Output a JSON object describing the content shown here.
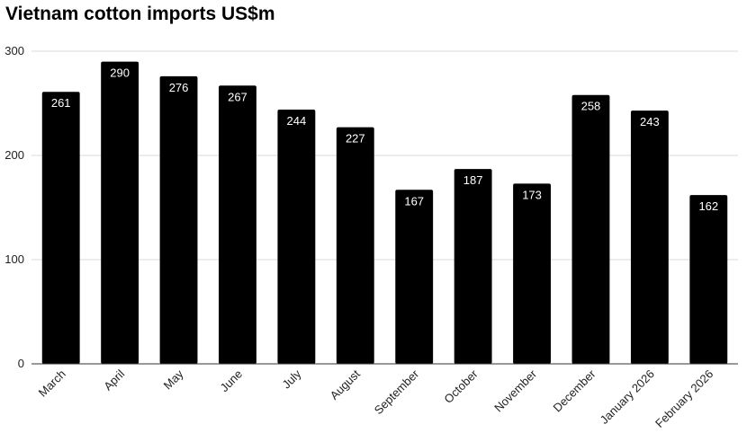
{
  "chart_data": {
    "type": "bar",
    "title": "Vietnam cotton imports US$m",
    "categories": [
      "March",
      "April",
      "May",
      "June",
      "July",
      "August",
      "September",
      "October",
      "November",
      "December",
      "January 2026",
      "February 2026"
    ],
    "values": [
      261,
      290,
      276,
      267,
      244,
      227,
      167,
      187,
      173,
      258,
      243,
      162
    ],
    "ylim": [
      0,
      300
    ],
    "yticks": [
      0,
      100,
      200,
      300
    ],
    "grid": true,
    "legend": "none",
    "data_labels": true,
    "bar_color": "#000000",
    "gridline_color": "#d9d9d9"
  }
}
